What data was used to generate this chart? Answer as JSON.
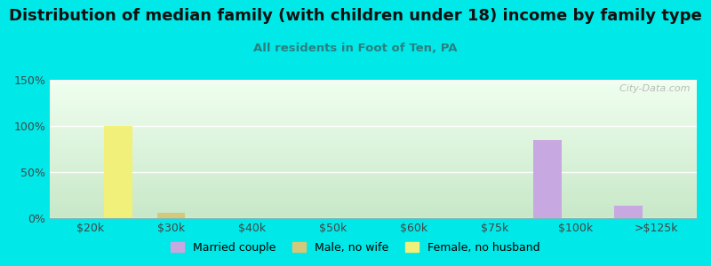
{
  "title": "Distribution of median family (with children under 18) income by family type",
  "subtitle": "All residents in Foot of Ten, PA",
  "background_color": "#00e8e8",
  "categories": [
    "$20k",
    "$30k",
    "$40k",
    "$50k",
    "$60k",
    "$75k",
    "$100k",
    ">$125k"
  ],
  "series": [
    {
      "name": "Married couple",
      "color": "#c8a8e0",
      "values": [
        0,
        0,
        0,
        0,
        0,
        0,
        85,
        13
      ]
    },
    {
      "name": "Male, no wife",
      "color": "#d4c87a",
      "values": [
        0,
        6,
        0,
        0,
        0,
        0,
        0,
        0
      ]
    },
    {
      "name": "Female, no husband",
      "color": "#f0f07a",
      "values": [
        100,
        0,
        0,
        0,
        0,
        0,
        0,
        0
      ]
    }
  ],
  "ylim": [
    0,
    150
  ],
  "yticks": [
    0,
    50,
    100,
    150
  ],
  "ytick_labels": [
    "0%",
    "50%",
    "100%",
    "150%"
  ],
  "watermark": "  City-Data.com",
  "plot_bg_top": "#f0fff0",
  "plot_bg_bottom": "#c8e8c8",
  "grid_color": "#ffffff",
  "title_fontsize": 13,
  "subtitle_fontsize": 9.5,
  "subtitle_color": "#2a8080",
  "tick_fontsize": 9,
  "bar_width": 0.35
}
